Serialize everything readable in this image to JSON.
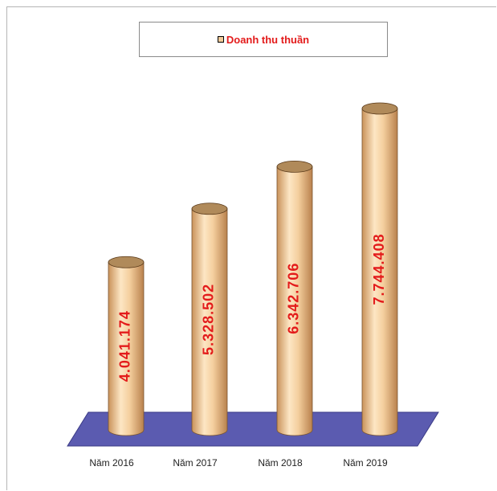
{
  "chart_data": {
    "type": "bar",
    "style": "3d-cylinder",
    "categories": [
      "Năm 2016",
      "Năm 2017",
      "Năm 2018",
      "Năm 2019"
    ],
    "series": [
      {
        "name": "Doanh thu thuần",
        "values": [
          4041174,
          5328502,
          6342706,
          7744408
        ]
      }
    ],
    "data_labels": [
      "4.041.174",
      "5.328.502",
      "6.342.706",
      "7.744.408"
    ],
    "legend_position": "top",
    "grid": false,
    "colors": {
      "bar": "#f2cc9a",
      "bar_shade": "#c8955a",
      "bar_top": "#b08a5a",
      "floor": "#5b5bb0",
      "label": "#e31b1b"
    }
  }
}
